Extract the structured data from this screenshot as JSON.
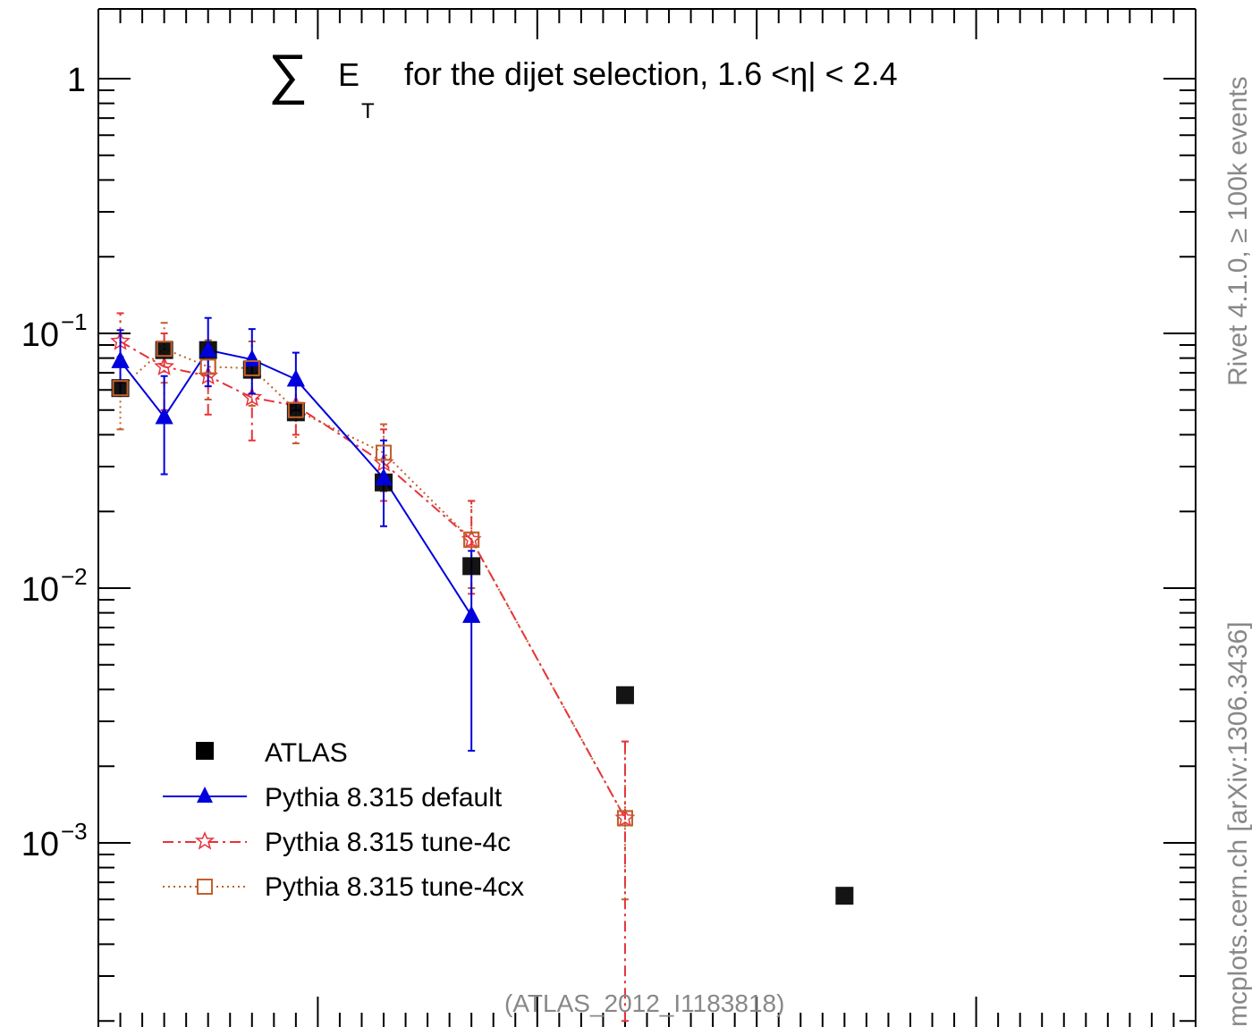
{
  "chart_data": {
    "type": "line",
    "title_sigma": "∑",
    "title_e": "E",
    "title_sub": "T",
    "title_rest": "for the dijet selection, 1.6 <η| < 2.4",
    "xlim": [
      0,
      200
    ],
    "ylim": [
      0.0002,
      2.0
    ],
    "yscale": "log",
    "y_tick_labels": [
      {
        "value": 1,
        "label": "1"
      },
      {
        "value": 0.1,
        "base": "10",
        "exp": "−1"
      },
      {
        "value": 0.01,
        "base": "10",
        "exp": "−2"
      },
      {
        "value": 0.001,
        "base": "10",
        "exp": "−3"
      }
    ],
    "legend_position": "bottom-left",
    "series": [
      {
        "name": "ATLAS",
        "color": "#000000",
        "marker": "square",
        "x": [
          4,
          12,
          20,
          28,
          36,
          52,
          68,
          96,
          136
        ],
        "y": [
          0.061,
          0.086,
          0.086,
          0.072,
          0.049,
          0.026,
          0.0122,
          0.0038,
          0.00062
        ]
      },
      {
        "name": "Pythia 8.315 default",
        "color": "#0000dd",
        "marker": "triangle",
        "x": [
          4,
          12,
          20,
          28,
          36,
          52,
          68
        ],
        "y": [
          0.078,
          0.047,
          0.086,
          0.079,
          0.066,
          0.027,
          0.0078
        ],
        "err_lo": [
          0.057,
          0.028,
          0.062,
          0.058,
          0.05,
          0.0175,
          0.0023
        ],
        "err_hi": [
          0.103,
          0.068,
          0.115,
          0.104,
          0.084,
          0.038,
          0.014
        ]
      },
      {
        "name": "Pythia 8.315 tune-4c",
        "color": "#e8333a",
        "marker": "star",
        "x": [
          4,
          12,
          20,
          28,
          36,
          52,
          68,
          96
        ],
        "y": [
          0.093,
          0.074,
          0.068,
          0.056,
          0.052,
          0.031,
          0.0155,
          0.00125
        ],
        "err_lo": [
          0.064,
          0.05,
          0.048,
          0.038,
          0.04,
          0.022,
          0.0095,
          0.0002
        ],
        "err_hi": [
          0.12,
          0.1,
          0.09,
          0.075,
          0.066,
          0.042,
          0.022,
          0.0025
        ]
      },
      {
        "name": "Pythia 8.315 tune-4cx",
        "color": "#c0612c",
        "marker": "open-square",
        "x": [
          4,
          12,
          20,
          28,
          36,
          52,
          68,
          96
        ],
        "y": [
          0.061,
          0.087,
          0.074,
          0.073,
          0.05,
          0.034,
          0.0155,
          0.00125
        ],
        "err_lo": [
          0.042,
          0.064,
          0.055,
          0.052,
          0.037,
          0.024,
          0.01,
          0.0006
        ],
        "err_hi": [
          0.081,
          0.11,
          0.094,
          0.093,
          0.063,
          0.044,
          0.022,
          0.0025
        ]
      }
    ],
    "annotation": "(ATLAS_2012_I1183818)",
    "side_text_top": "Rivet 4.1.0, ≥ 100k events",
    "side_text_bottom": "mcplots.cern.ch [arXiv:1306.3436]"
  }
}
